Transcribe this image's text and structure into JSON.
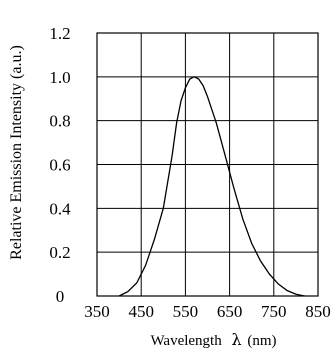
{
  "chart_data": {
    "type": "line",
    "title": "",
    "xlabel_prefix": "Wavelength",
    "xlabel_symbol": "λ",
    "xlabel_unit": "(nm)",
    "ylabel": "Relative Emission Intensity (a.u.)",
    "xlim": [
      350,
      850
    ],
    "ylim": [
      0,
      1.2
    ],
    "x_ticks": [
      "350",
      "450",
      "550",
      "650",
      "750",
      "850"
    ],
    "y_ticks": [
      "0",
      "0.2",
      "0.4",
      "0.6",
      "0.8",
      "1.0",
      "1.2"
    ],
    "grid": true,
    "series": [
      {
        "x": [
          400,
          420,
          440,
          460,
          480,
          500,
          520,
          530,
          540,
          550,
          560,
          570,
          580,
          590,
          600,
          620,
          640,
          660,
          680,
          700,
          720,
          740,
          760,
          780,
          800,
          820
        ],
        "y": [
          0.0,
          0.02,
          0.06,
          0.14,
          0.26,
          0.4,
          0.64,
          0.79,
          0.89,
          0.95,
          0.99,
          1.0,
          0.99,
          0.96,
          0.91,
          0.79,
          0.64,
          0.49,
          0.35,
          0.24,
          0.16,
          0.1,
          0.055,
          0.025,
          0.008,
          0.0
        ],
        "color": "#000000"
      }
    ]
  }
}
